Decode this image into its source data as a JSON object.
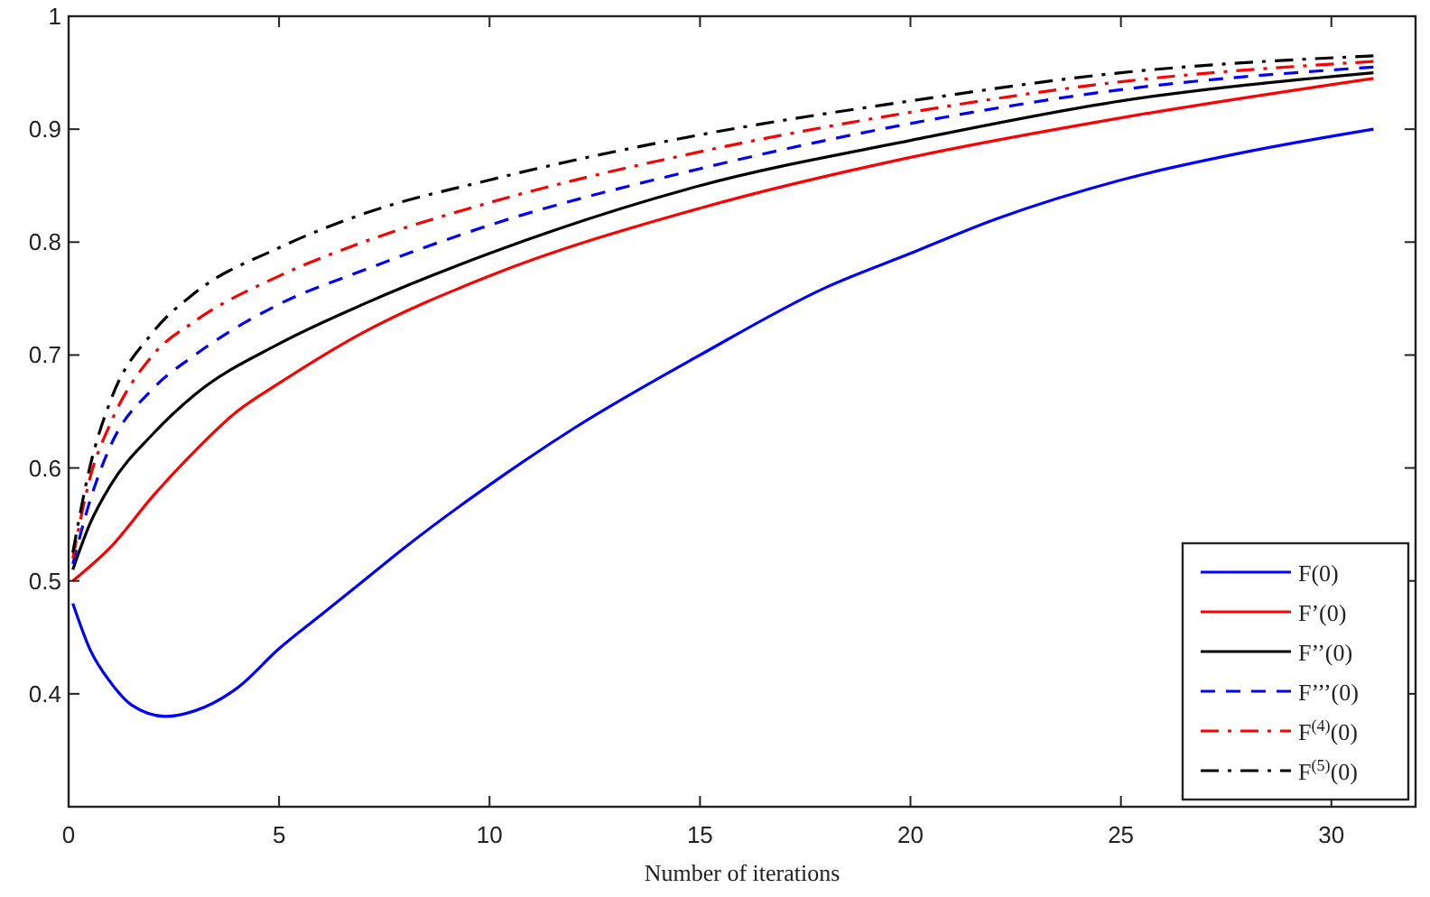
{
  "chart_data": {
    "type": "line",
    "xlabel": "Number of iterations",
    "xlim": [
      0,
      32
    ],
    "xticks": [
      0,
      5,
      10,
      15,
      20,
      25,
      30
    ],
    "ylim": [
      0.3,
      1
    ],
    "yticks": [
      0.4,
      0.5,
      0.6,
      0.7,
      0.8,
      0.9,
      1
    ],
    "grid": false,
    "legend": "bottom right",
    "marker": "none",
    "series": [
      {
        "name": "F(0)",
        "color": "#0000ff",
        "line_style": "solid",
        "x": [
          0.1,
          0.5,
          1,
          1.5,
          2.3,
          3,
          4,
          5,
          6,
          7,
          8,
          10,
          12,
          15,
          18,
          20,
          22,
          25,
          28,
          31
        ],
        "values": [
          0.48,
          0.44,
          0.41,
          0.39,
          0.38,
          0.385,
          0.405,
          0.44,
          0.47,
          0.5,
          0.53,
          0.585,
          0.635,
          0.7,
          0.76,
          0.79,
          0.82,
          0.855,
          0.88,
          0.9
        ]
      },
      {
        "name": "F’(0)",
        "color": "#ff0000",
        "line_style": "solid",
        "x": [
          0.1,
          1,
          2,
          3,
          4,
          5,
          7,
          10,
          15,
          20,
          25,
          31
        ],
        "values": [
          0.5,
          0.53,
          0.575,
          0.615,
          0.65,
          0.675,
          0.72,
          0.77,
          0.83,
          0.875,
          0.91,
          0.945
        ]
      },
      {
        "name": "F’’(0)",
        "color": "#000000",
        "line_style": "solid",
        "x": [
          0.1,
          0.5,
          1,
          2,
          3,
          5,
          7,
          10,
          15,
          20,
          25,
          31
        ],
        "values": [
          0.51,
          0.55,
          0.585,
          0.63,
          0.665,
          0.71,
          0.745,
          0.79,
          0.85,
          0.89,
          0.925,
          0.95
        ]
      },
      {
        "name": "F’’’(0)",
        "color": "#0000ff",
        "line_style": "dashed",
        "x": [
          0.1,
          0.5,
          1,
          2,
          3,
          5,
          7,
          10,
          15,
          20,
          25,
          31
        ],
        "values": [
          0.515,
          0.57,
          0.62,
          0.67,
          0.7,
          0.745,
          0.775,
          0.815,
          0.865,
          0.905,
          0.935,
          0.955
        ]
      },
      {
        "name": "F$^{(4)}$(0)",
        "color": "#ff0000",
        "line_style": "dashdot",
        "x": [
          0.1,
          0.5,
          1,
          2,
          3,
          5,
          7,
          10,
          15,
          20,
          25,
          31
        ],
        "values": [
          0.52,
          0.59,
          0.64,
          0.7,
          0.73,
          0.77,
          0.8,
          0.835,
          0.88,
          0.915,
          0.942,
          0.96
        ]
      },
      {
        "name": "F$^{(5)}$(0)",
        "color": "#000000",
        "line_style": "dashdot",
        "x": [
          0.1,
          0.5,
          1,
          2,
          3,
          5,
          7,
          10,
          15,
          20,
          25,
          31
        ],
        "values": [
          0.525,
          0.6,
          0.66,
          0.72,
          0.755,
          0.795,
          0.825,
          0.855,
          0.895,
          0.925,
          0.95,
          0.965
        ]
      }
    ]
  }
}
